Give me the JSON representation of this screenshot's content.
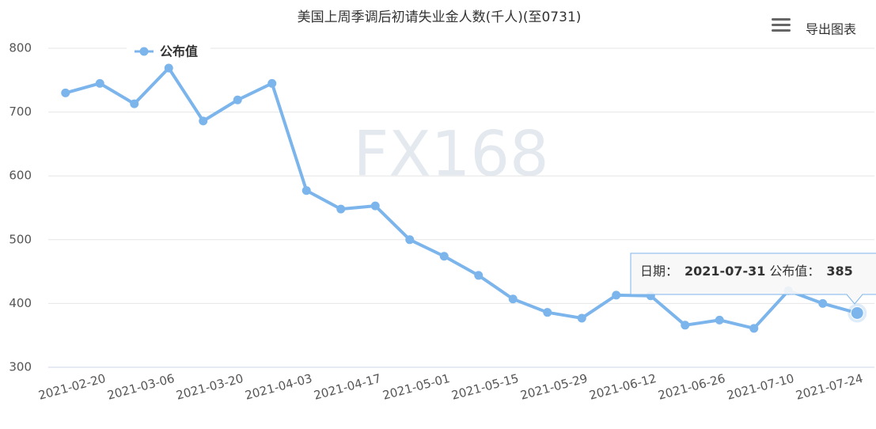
{
  "chart_data": {
    "type": "line",
    "title": "美国上周季调后初请失业金人数(千人)(至0731)",
    "categories": [
      null,
      "2021-02-20",
      null,
      "2021-03-06",
      null,
      "2021-03-20",
      null,
      "2021-04-03",
      null,
      "2021-04-17",
      null,
      "2021-05-01",
      null,
      "2021-05-15",
      null,
      "2021-05-29",
      null,
      "2021-06-12",
      null,
      "2021-06-26",
      null,
      "2021-07-10",
      null,
      "2021-07-24"
    ],
    "series": [
      {
        "name": "公布值",
        "color": "#7cb5ec",
        "values": [
          730,
          745,
          713,
          769,
          686,
          719,
          745,
          577,
          548,
          553,
          500,
          474,
          444,
          407,
          386,
          377,
          413,
          412,
          366,
          374,
          361,
          420,
          400,
          385
        ]
      }
    ],
    "ylim": [
      300,
      800
    ],
    "yticks": [
      300,
      400,
      500,
      600,
      700,
      800
    ],
    "grid": true,
    "legend": "top-left",
    "watermark": "FX168",
    "menu_label": "导出图表",
    "tooltip": {
      "date_label": "日期：",
      "date": "2021-07-31",
      "series_label": "公布值：",
      "value": 385
    }
  }
}
